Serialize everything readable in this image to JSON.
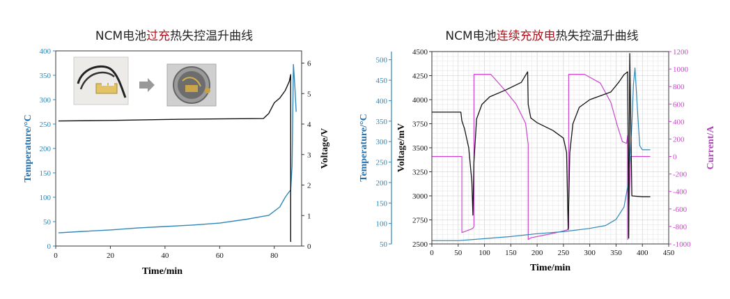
{
  "colors": {
    "temperature": "#2e86b8",
    "voltage": "#111111",
    "current": "#cc44cc",
    "temp_axis_label": "#1f6fb0",
    "voltage_axis_label": "#111111",
    "current_axis_label": "#b040b8",
    "highlight": "#b3121b"
  },
  "icons": {
    "arrow": "grey-right-arrow-icon"
  },
  "chart_data": [
    {
      "type": "line",
      "title_prefix": "NCM电池",
      "title_highlight": "过充",
      "title_suffix": "热失控温升曲线",
      "xlabel": "Time/min",
      "ylabel_left": "Temperature/°C",
      "ylabel_right": "Voltage/V",
      "xlim": [
        0,
        90
      ],
      "ylim_left": [
        0,
        400
      ],
      "ylim_right": [
        0,
        6.4
      ],
      "xticks": [
        0,
        20,
        40,
        60,
        80
      ],
      "yticks_left": [
        0,
        50,
        100,
        150,
        200,
        250,
        300,
        350,
        400
      ],
      "yticks_right": [
        0,
        1,
        2,
        3,
        4,
        5,
        6
      ],
      "inset_images": [
        "battery-cell-with-wires-photo",
        "battery-in-chamber-photo"
      ],
      "series": [
        {
          "axis": "left",
          "x": [
            1,
            10,
            20,
            30,
            40,
            50,
            60,
            70,
            78,
            82,
            84,
            85,
            86,
            86.5,
            87,
            87.5,
            88
          ],
          "y": [
            27,
            30,
            33,
            37,
            40,
            43,
            47,
            55,
            63,
            80,
            100,
            108,
            115,
            165,
            372,
            330,
            275
          ]
        },
        {
          "axis": "right",
          "x": [
            1,
            20,
            40,
            60,
            76,
            78,
            80,
            82,
            84,
            85.5,
            86,
            86,
            86.2
          ],
          "y": [
            4.1,
            4.12,
            4.15,
            4.17,
            4.18,
            4.35,
            4.7,
            4.85,
            5.1,
            5.4,
            5.62,
            0.15,
            0.15
          ]
        }
      ]
    },
    {
      "type": "line",
      "title_prefix": "NCM电池",
      "title_highlight": "连续充放电",
      "title_suffix": "热失控温升曲线",
      "xlabel": "Time/min",
      "ylabel_temp": "Temperature/°C",
      "ylabel_voltage": "Voltage/mV",
      "ylabel_current": "Current/A",
      "xlim": [
        0,
        450
      ],
      "ylim_temp": [
        50,
        520
      ],
      "ylim_voltage": [
        2500,
        4500
      ],
      "ylim_current": [
        -1000,
        1200
      ],
      "xticks": [
        0,
        50,
        100,
        150,
        200,
        250,
        300,
        350,
        400,
        450
      ],
      "yticks_temp": [
        50,
        100,
        150,
        200,
        250,
        300,
        350,
        400,
        450,
        500
      ],
      "yticks_voltage": [
        2500,
        2750,
        3000,
        3250,
        3500,
        3750,
        4000,
        4250,
        4500
      ],
      "yticks_current": [
        -1000,
        -800,
        -600,
        -400,
        -200,
        0,
        200,
        400,
        600,
        800,
        1000,
        1200
      ],
      "grid": true,
      "series": [
        {
          "axis": "temp",
          "x": [
            0,
            50,
            100,
            150,
            200,
            250,
            300,
            330,
            350,
            365,
            372,
            376,
            380,
            383,
            386,
            390,
            395,
            400,
            415
          ],
          "y": [
            58,
            58,
            63,
            68,
            75,
            80,
            88,
            95,
            110,
            140,
            190,
            260,
            340,
            440,
            480,
            390,
            290,
            280,
            280
          ]
        },
        {
          "axis": "voltage",
          "x": [
            0,
            55,
            57,
            62,
            70,
            76,
            78,
            80,
            85,
            95,
            110,
            140,
            170,
            182,
            183,
            188,
            200,
            230,
            250,
            256,
            259,
            262,
            268,
            280,
            300,
            340,
            355,
            365,
            372,
            374,
            376,
            380,
            400,
            415
          ],
          "y": [
            3870,
            3870,
            3780,
            3700,
            3500,
            3150,
            2800,
            3350,
            3800,
            3950,
            4030,
            4100,
            4180,
            4290,
            3950,
            3810,
            3760,
            3680,
            3600,
            3450,
            2650,
            3450,
            3750,
            3920,
            4000,
            4080,
            4180,
            4260,
            4290,
            2560,
            4480,
            3000,
            2990,
            2990
          ]
        },
        {
          "axis": "current",
          "x": [
            0,
            57,
            57,
            75,
            78,
            80,
            80,
            112,
            140,
            160,
            178,
            183,
            183,
            188,
            230,
            257,
            260,
            260,
            290,
            320,
            340,
            352,
            362,
            370,
            372,
            372,
            378,
            415
          ],
          "y": [
            0,
            0,
            -870,
            -830,
            -820,
            -800,
            940,
            940,
            750,
            600,
            380,
            140,
            -950,
            -930,
            -880,
            -840,
            -820,
            940,
            940,
            840,
            620,
            360,
            170,
            150,
            240,
            -950,
            0,
            0
          ]
        }
      ]
    }
  ]
}
